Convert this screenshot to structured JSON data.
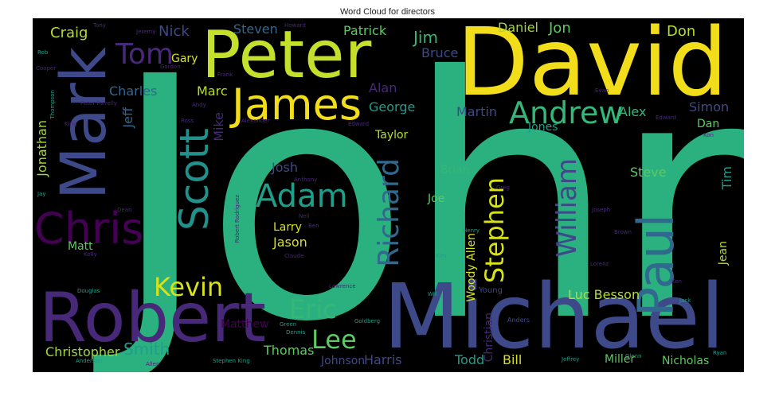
{
  "title": "Word Cloud for directors",
  "palette": {
    "yellow": "#fde725",
    "lime": "#b5de2b",
    "green": "#35b779",
    "teal": "#1f9e89",
    "blue": "#31688e",
    "slate": "#3e4989",
    "purple": "#482878",
    "darkpurple": "#440154"
  },
  "words": [
    "John",
    "David",
    "Michael",
    "Robert",
    "Peter",
    "Mark",
    "Paul",
    "James",
    "Scott",
    "Chris",
    "Andrew",
    "Adam",
    "Richard",
    "Stephen",
    "William",
    "Kevin",
    "Eric",
    "Lee",
    "Tom",
    "Craig",
    "Nick",
    "Steven",
    "Patrick",
    "Jim",
    "Bruce",
    "Daniel",
    "Jon",
    "Don",
    "Gary",
    "Marc",
    "Charles",
    "Jonathan",
    "Jeff",
    "Mike",
    "Alan",
    "George",
    "Martin",
    "Alex",
    "Simon",
    "Jones",
    "Dan",
    "Taylor",
    "Josh",
    "Brian",
    "Steve",
    "Tim",
    "Joe",
    "Larry",
    "Jason",
    "Matt",
    "Matthew",
    "Christopher",
    "Smith",
    "Thomas",
    "Johnson",
    "Harris",
    "Todd",
    "Bill",
    "Miller",
    "Nicholas",
    "Luc Besson",
    "Woody Allen",
    "Jean",
    "Christian",
    "Young",
    "Anders",
    "Tony",
    "Jeremy",
    "Howard",
    "Rob",
    "Cooper",
    "Gordon",
    "Peter Farrelly",
    "Thompson",
    "King",
    "Frank",
    "Andy",
    "Ross",
    "Alexander",
    "Russell",
    "Edward",
    "Evan",
    "Ken",
    "Kon",
    "Jay",
    "Dean",
    "Anthony",
    "Greg",
    "Joseph",
    "Neil",
    "Ben",
    "Henry",
    "Brown",
    "Kelly",
    "Robert Rodriguez",
    "Claude",
    "Lawrence",
    "Kim",
    "Lorenz",
    "Douglas",
    "Green",
    "Goldberg",
    "Will",
    "Dennis",
    "Jack",
    "Ryan",
    "Glenn",
    "Jeffrey",
    "Stephen King",
    "Allen",
    "Anderson",
    "de",
    "Brad",
    "Ed",
    "Kim",
    "Sam"
  ]
}
